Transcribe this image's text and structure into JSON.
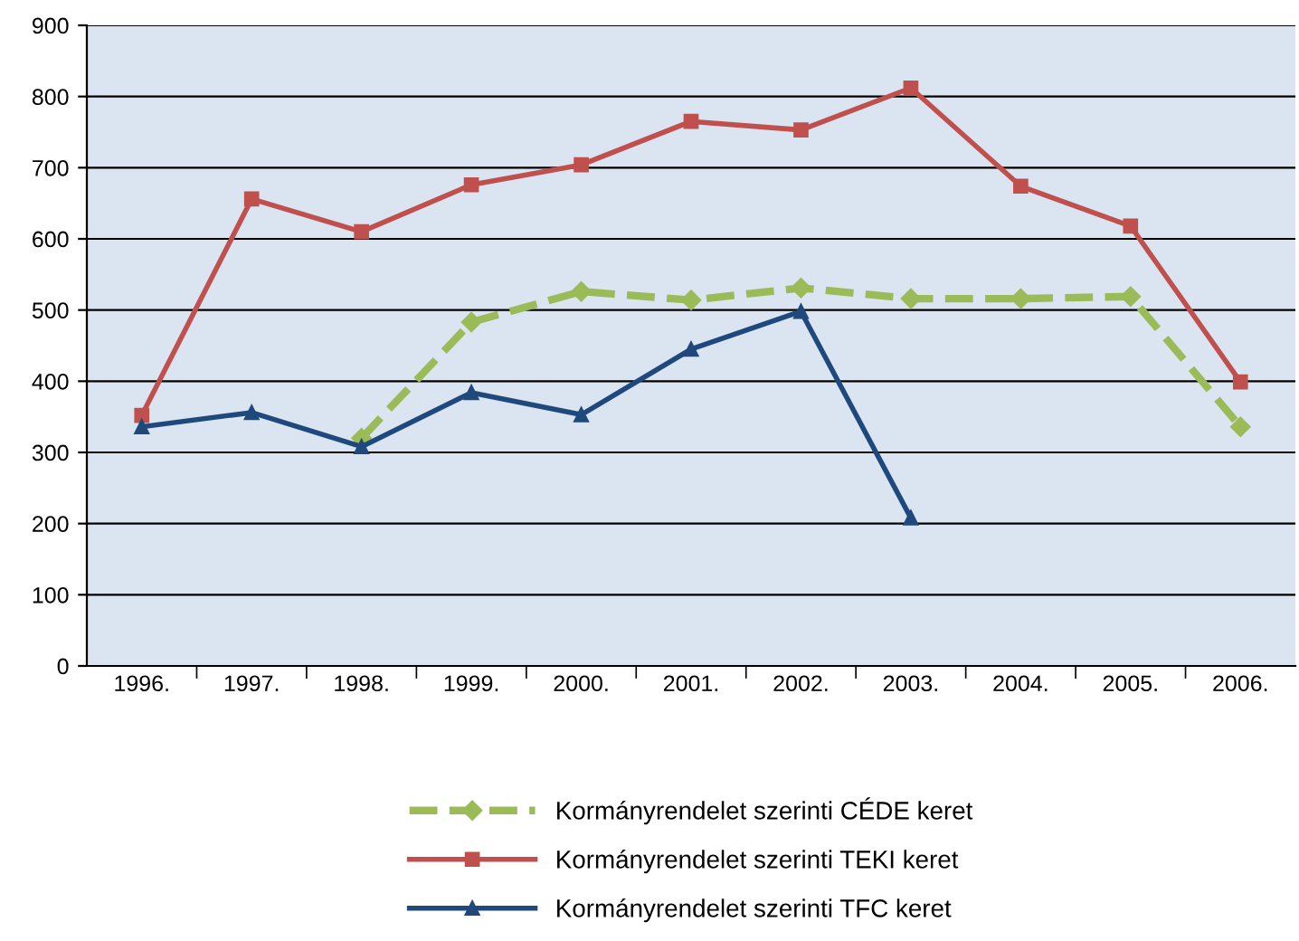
{
  "chart_data": {
    "type": "line",
    "categories": [
      "1996.",
      "1997.",
      "1998.",
      "1999.",
      "2000.",
      "2001.",
      "2002.",
      "2003.",
      "2004.",
      "2005.",
      "2006."
    ],
    "series": [
      {
        "name": "Kormányrendelet szerinti CÉDE keret",
        "color": "#9bbb59",
        "marker": "diamond",
        "line_style": "dashed",
        "values": [
          null,
          null,
          320,
          483,
          526,
          514,
          531,
          516,
          516,
          519,
          336
        ]
      },
      {
        "name": "Kormányrendelet szerinti TEKI keret",
        "color": "#c0504d",
        "marker": "square",
        "line_style": "solid",
        "values": [
          352,
          656,
          610,
          676,
          704,
          765,
          753,
          812,
          674,
          618,
          399
        ]
      },
      {
        "name": "Kormányrendelet szerinti TFC keret",
        "color": "#1f497d",
        "marker": "triangle",
        "line_style": "solid",
        "values": [
          336,
          356,
          308,
          384,
          353,
          445,
          498,
          208,
          null,
          null,
          null
        ]
      }
    ],
    "ylim": [
      0,
      900
    ],
    "yticks": [
      0,
      100,
      200,
      300,
      400,
      500,
      600,
      700,
      800,
      900
    ],
    "grid": "y",
    "legend": "bottom"
  }
}
